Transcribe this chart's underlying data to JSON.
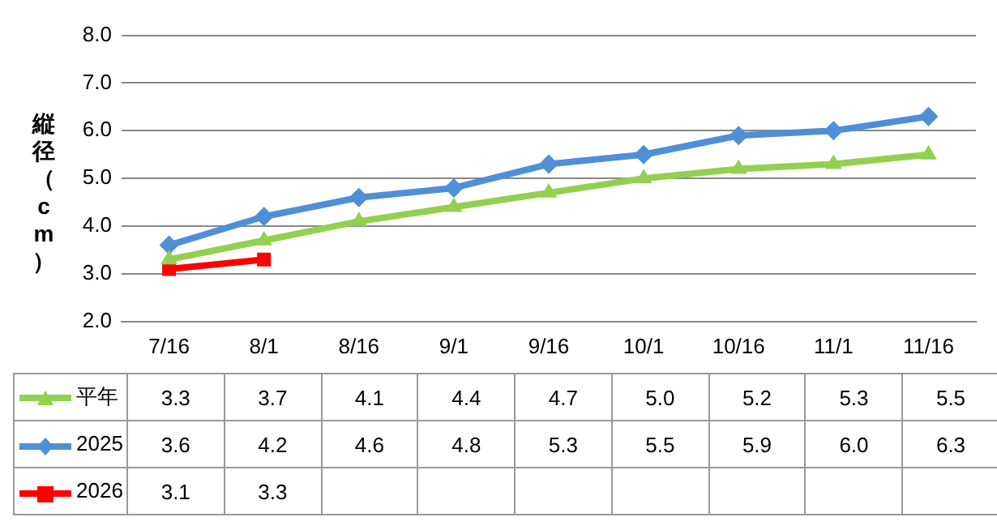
{
  "chart_data": {
    "type": "line",
    "ylabel": "縦径（cm）",
    "categories": [
      "7/16",
      "8/1",
      "8/16",
      "9/1",
      "9/16",
      "10/1",
      "10/16",
      "11/1",
      "11/16"
    ],
    "series": [
      {
        "name": "平年",
        "color": "#92d050",
        "marker": "triangle",
        "values": [
          3.3,
          3.7,
          4.1,
          4.4,
          4.7,
          5.0,
          5.2,
          5.3,
          5.5
        ],
        "value_labels": [
          "3.3",
          "3.7",
          "4.1",
          "4.4",
          "4.7",
          "5.0",
          "5.2",
          "5.3",
          "5.5"
        ]
      },
      {
        "name": "2025",
        "color": "#4f8fd6",
        "marker": "diamond",
        "values": [
          3.6,
          4.2,
          4.6,
          4.8,
          5.3,
          5.5,
          5.9,
          6.0,
          6.3
        ],
        "value_labels": [
          "3.6",
          "4.2",
          "4.6",
          "4.8",
          "5.3",
          "5.5",
          "5.9",
          "6.0",
          "6.3"
        ]
      },
      {
        "name": "2026",
        "color": "#ff0000",
        "marker": "square",
        "values": [
          3.1,
          3.3,
          null,
          null,
          null,
          null,
          null,
          null,
          null
        ],
        "value_labels": [
          "3.1",
          "3.3",
          null,
          null,
          null,
          null,
          null,
          null,
          null
        ]
      }
    ],
    "ylim": [
      2.0,
      8.0
    ],
    "yticks": [
      {
        "value": 2,
        "label": "2.0"
      },
      {
        "value": 3,
        "label": "3.0"
      },
      {
        "value": 4,
        "label": "4.0"
      },
      {
        "value": 5,
        "label": "5.0"
      },
      {
        "value": 6,
        "label": "6.0"
      },
      {
        "value": 7,
        "label": "7.0"
      },
      {
        "value": 8,
        "label": "8.0"
      }
    ],
    "grid": "y",
    "legend": "bottom",
    "line_style": "solid"
  }
}
